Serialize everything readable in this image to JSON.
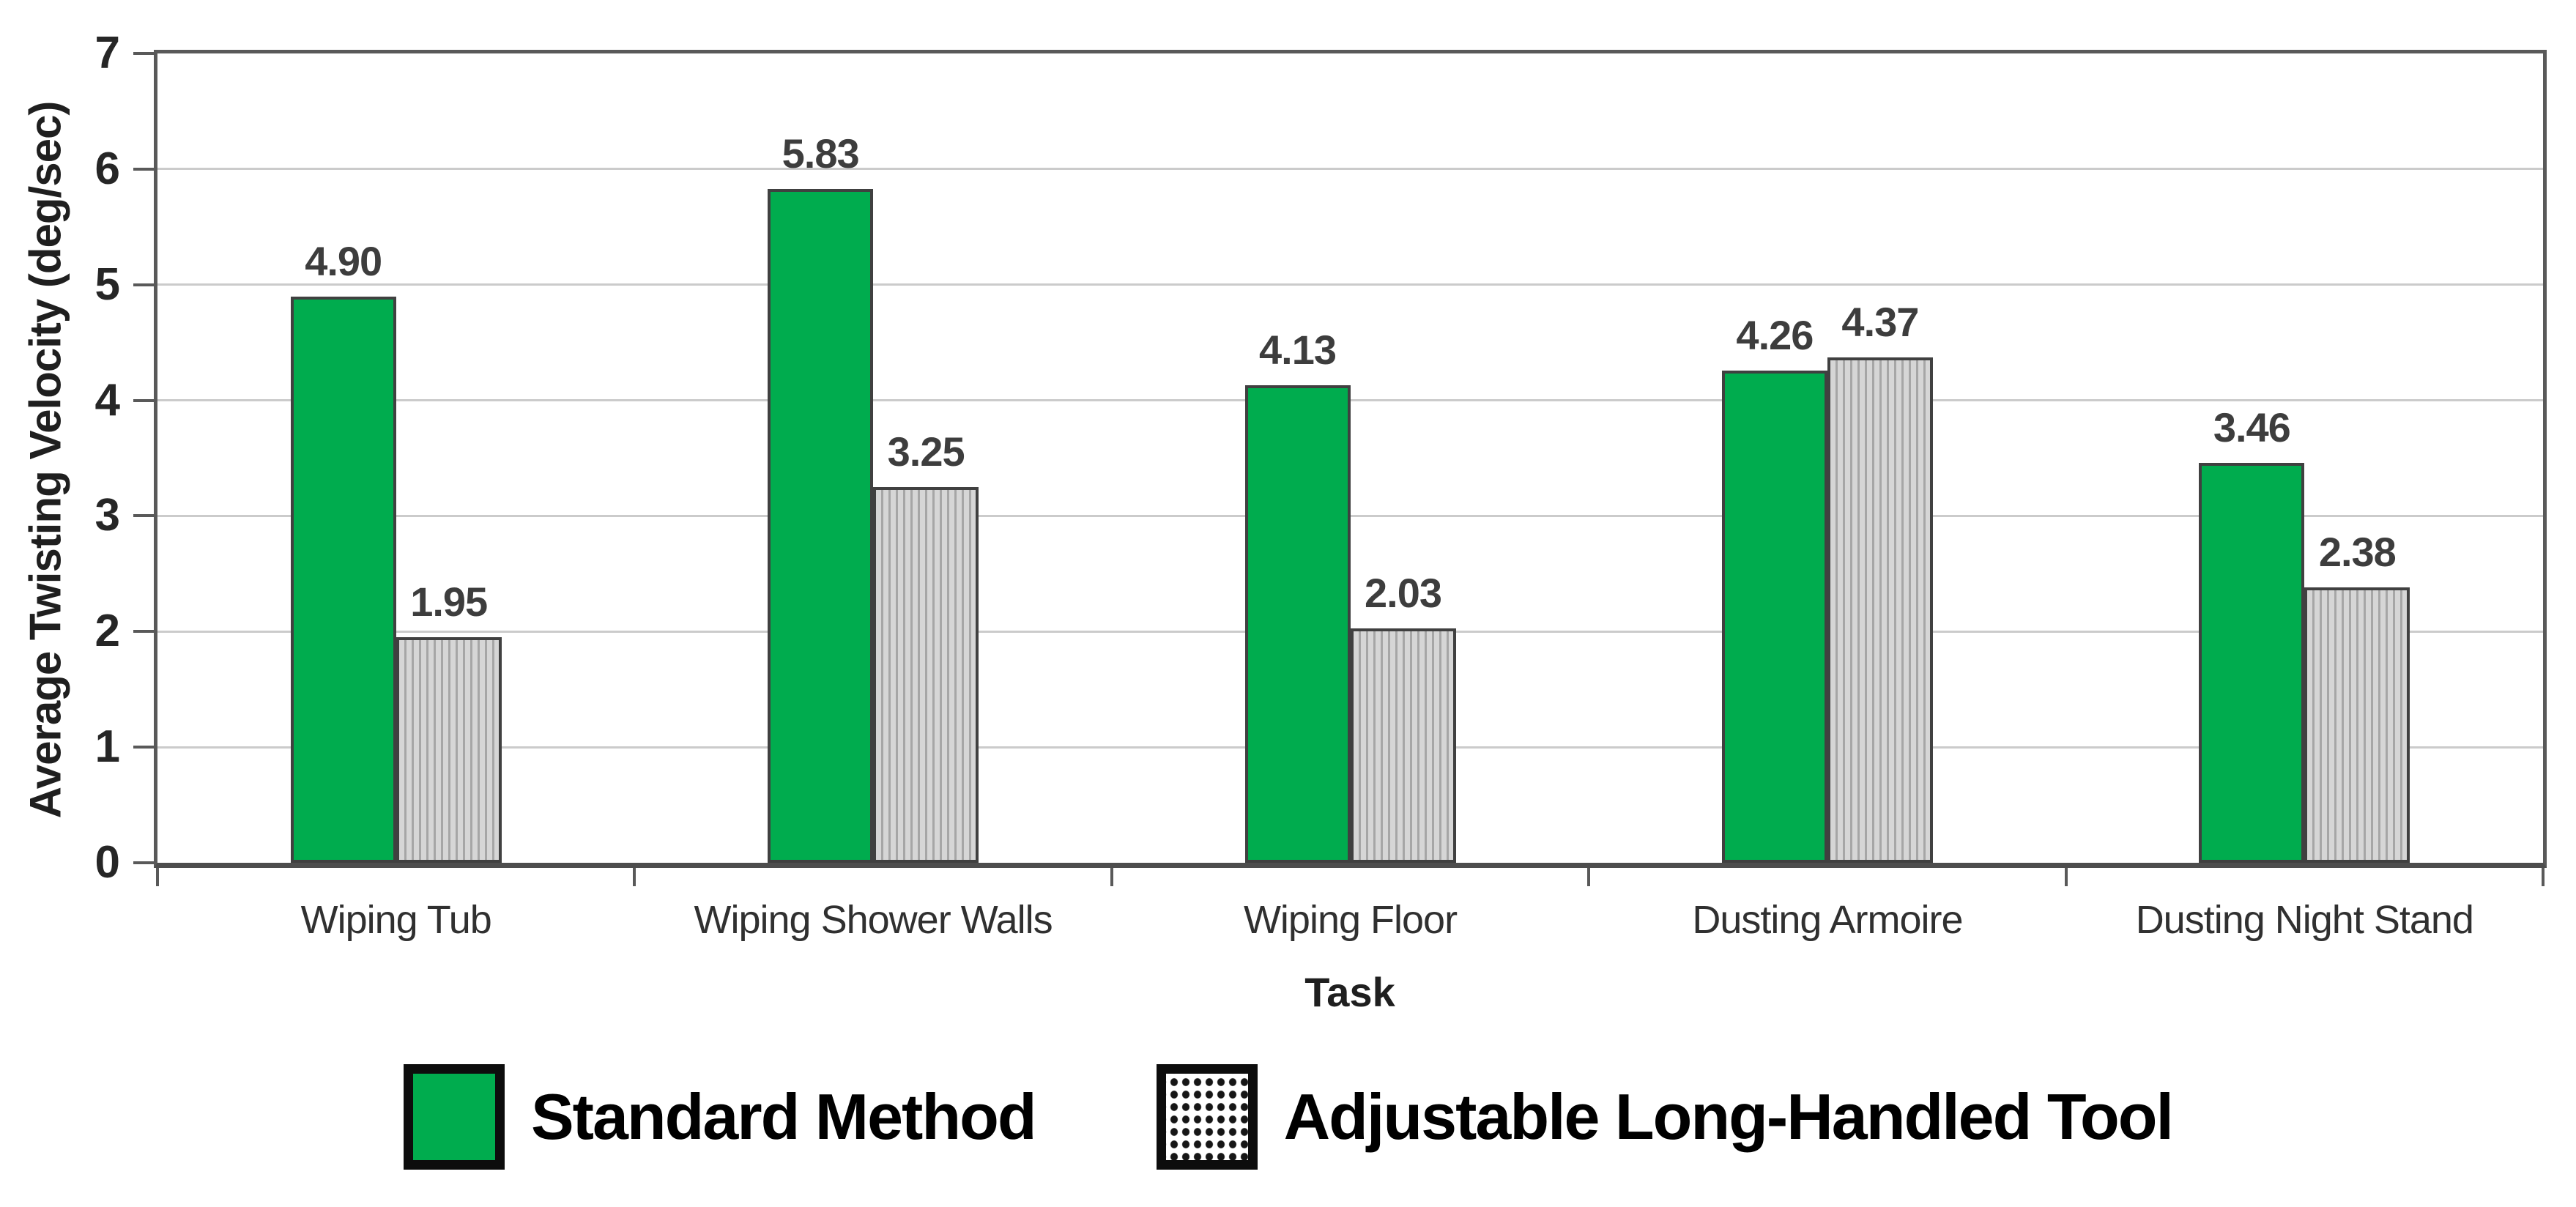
{
  "chart_data": {
    "type": "bar",
    "title": "",
    "xlabel": "Task",
    "ylabel": "Average Twisting Velocity (deg/sec)",
    "ylim": [
      0,
      7
    ],
    "yticks": [
      0,
      1,
      2,
      3,
      4,
      5,
      6,
      7
    ],
    "grid": "horizontal",
    "legend_position": "bottom",
    "categories": [
      "Wiping Tub",
      "Wiping Shower Walls",
      "Wiping Floor",
      "Dusting Armoire",
      "Dusting Night Stand"
    ],
    "series": [
      {
        "name": "Standard Method",
        "values": [
          4.9,
          5.83,
          4.13,
          4.26,
          3.46
        ],
        "labels": [
          "4.90",
          "5.83",
          "4.13",
          "4.26",
          "3.46"
        ],
        "fill": "#00AC4E",
        "pattern": "solid"
      },
      {
        "name": "Adjustable Long-Handled Tool",
        "values": [
          1.95,
          3.25,
          2.03,
          4.37,
          2.38
        ],
        "labels": [
          "1.95",
          "3.25",
          "2.03",
          "4.37",
          "2.38"
        ],
        "fill": "#D6D6D6",
        "stripe": "#A6A6A6",
        "pattern": "vertical-stripes"
      }
    ],
    "colors": {
      "bar_border": "#404040",
      "plot_border": "#595959",
      "gridline": "#CBCBCB",
      "value_label": "#3D3D3D",
      "tick_label": "#262626"
    }
  }
}
